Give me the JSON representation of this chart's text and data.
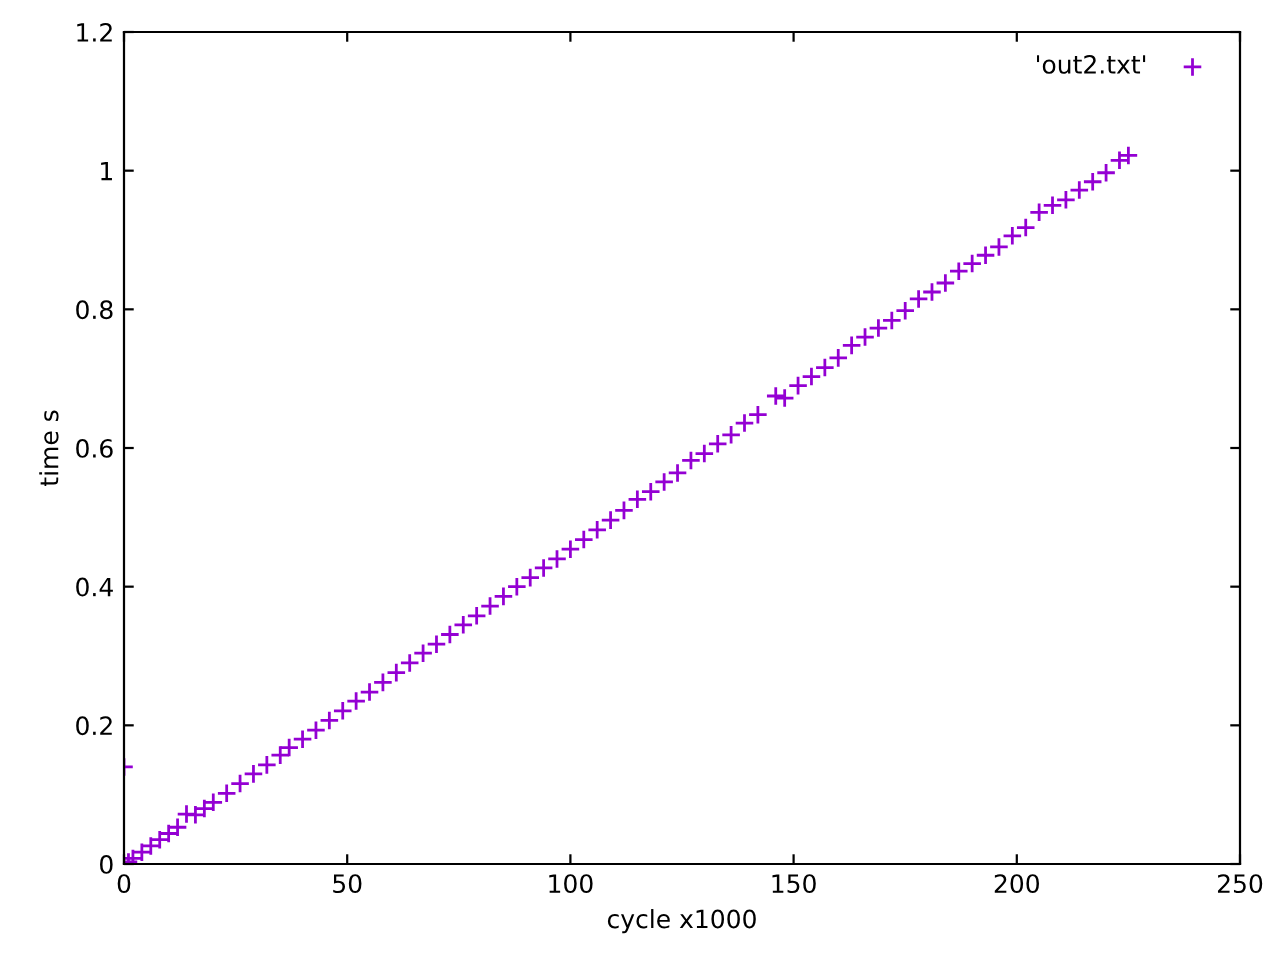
{
  "chart_data": {
    "type": "scatter",
    "xlabel": "cycle x1000",
    "ylabel": "time s",
    "xlim": [
      0,
      250
    ],
    "xticks": [
      0,
      50,
      100,
      150,
      200,
      250
    ],
    "ylim": [
      0,
      1.2
    ],
    "yticks": [
      0,
      0.2,
      0.4,
      0.6,
      0.8,
      1,
      1.2
    ],
    "grid": false,
    "legend": "top right",
    "marker": "cross",
    "series": [
      {
        "name": "'out2.txt'",
        "color": "#9400d3",
        "x": [
          0,
          1,
          2,
          4,
          6,
          8,
          10,
          12,
          14,
          16,
          18,
          20,
          23,
          26,
          29,
          32,
          35,
          37,
          40,
          43,
          46,
          49,
          52,
          55,
          58,
          61,
          64,
          67,
          70,
          73,
          76,
          79,
          82,
          85,
          88,
          91,
          94,
          97,
          100,
          103,
          106,
          109,
          112,
          115,
          118,
          121,
          124,
          127,
          130,
          133,
          136,
          139,
          142,
          146,
          148,
          151,
          154,
          157,
          160,
          163,
          166,
          169,
          172,
          175,
          178,
          181,
          184,
          187,
          190,
          193,
          196,
          199,
          202,
          205,
          208,
          211,
          214,
          217,
          220,
          223,
          225
        ],
        "values": [
          0.14,
          0.003,
          0.008,
          0.017,
          0.026,
          0.035,
          0.044,
          0.053,
          0.072,
          0.071,
          0.08,
          0.089,
          0.102,
          0.116,
          0.13,
          0.143,
          0.157,
          0.168,
          0.18,
          0.193,
          0.207,
          0.221,
          0.235,
          0.248,
          0.262,
          0.276,
          0.29,
          0.304,
          0.317,
          0.331,
          0.345,
          0.358,
          0.372,
          0.386,
          0.4,
          0.413,
          0.427,
          0.44,
          0.454,
          0.468,
          0.482,
          0.496,
          0.51,
          0.526,
          0.537,
          0.551,
          0.564,
          0.582,
          0.592,
          0.606,
          0.619,
          0.636,
          0.648,
          0.675,
          0.672,
          0.69,
          0.703,
          0.716,
          0.73,
          0.748,
          0.76,
          0.773,
          0.784,
          0.798,
          0.815,
          0.825,
          0.838,
          0.855,
          0.866,
          0.878,
          0.89,
          0.906,
          0.918,
          0.94,
          0.95,
          0.958,
          0.972,
          0.984,
          0.997,
          1.015,
          1.022
        ]
      }
    ]
  }
}
